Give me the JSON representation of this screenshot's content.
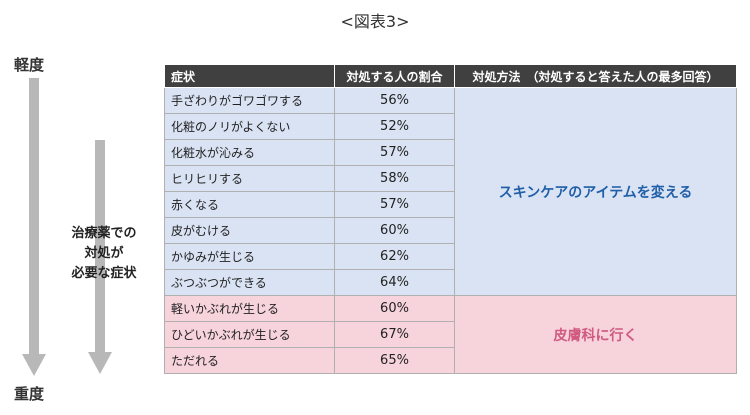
{
  "figure_title": "<図表3>",
  "severity": {
    "mild": "軽度",
    "severe": "重度"
  },
  "treatment_label": [
    "治療薬での",
    "対処が",
    "必要な症状"
  ],
  "table": {
    "headers": {
      "symptom": "症状",
      "rate": "対処する人の割合",
      "method": "対処方法　（対処すると答えた人の最多回答）"
    },
    "rows": [
      {
        "symptom": "手ざわりがゴワゴワする",
        "rate": "56%"
      },
      {
        "symptom": "化粧のノリがよくない",
        "rate": "52%"
      },
      {
        "symptom": "化粧水が沁みる",
        "rate": "57%"
      },
      {
        "symptom": "ヒリヒリする",
        "rate": "58%"
      },
      {
        "symptom": "赤くなる",
        "rate": "57%"
      },
      {
        "symptom": "皮がむける",
        "rate": "60%"
      },
      {
        "symptom": "かゆみが生じる",
        "rate": "62%"
      },
      {
        "symptom": "ぶつぶつができる",
        "rate": "64%"
      },
      {
        "symptom": "軽いかぶれが生じる",
        "rate": "60%"
      },
      {
        "symptom": "ひどいかぶれが生じる",
        "rate": "67%"
      },
      {
        "symptom": "ただれる",
        "rate": "65%"
      }
    ],
    "methods": {
      "skincare": "スキンケアのアイテムを変える",
      "dermatology": "皮膚科に行く"
    }
  },
  "colors": {
    "header_bg": "#404040",
    "blue_row": "#dae3f3",
    "pink_row": "#f7d3dc",
    "blue_text": "#1f5fa8",
    "pink_text": "#d05a80",
    "arrow": "#b8b8b8"
  }
}
